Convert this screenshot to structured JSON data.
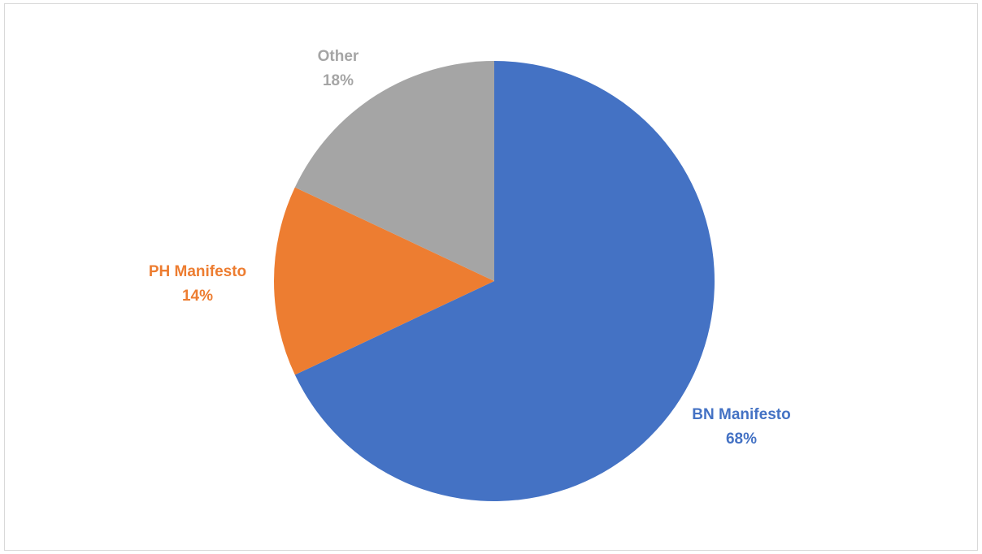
{
  "chart_data": {
    "type": "pie",
    "title": "",
    "slices": [
      {
        "label": "BN Manifesto",
        "value": 68,
        "value_label": "68%",
        "color": "#4472C4"
      },
      {
        "label": "PH Manifesto",
        "value": 14,
        "value_label": "14%",
        "color": "#ED7D31"
      },
      {
        "label": "Other",
        "value": 18,
        "value_label": "18%",
        "color": "#A5A5A5"
      }
    ],
    "start_angle_deg": 0,
    "direction": "clockwise",
    "legend": "none",
    "label_position": "outside"
  }
}
